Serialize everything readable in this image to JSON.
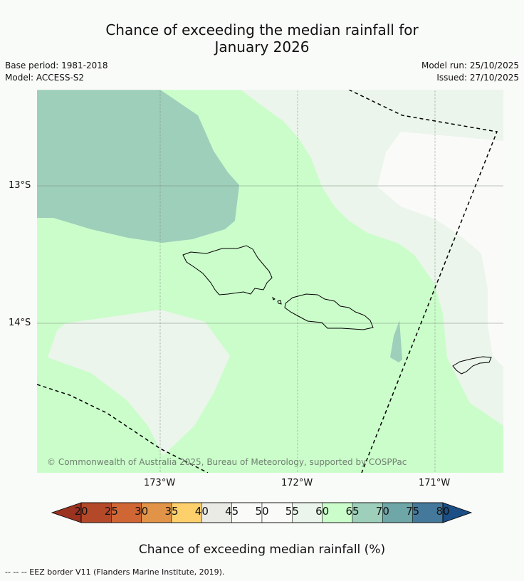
{
  "header": {
    "title_line1": "Chance of exceeding the median rainfall for",
    "title_line2": "January 2026",
    "base_period": "Base period: 1981-2018",
    "model": "Model: ACCESS-S2",
    "model_run": "Model run: 25/10/2025",
    "issued": "Issued: 27/10/2025"
  },
  "map": {
    "lat_labels": [
      "13°S",
      "14°S"
    ],
    "lon_labels": [
      "173°W",
      "172°W",
      "171°W"
    ],
    "copyright": "© Commonwealth of Australia 2025, Bureau of Meteorology, supported by COSPPac",
    "region_categories": {
      "background": "60-65",
      "northwest_patch": "65-70",
      "east_band": "55-60",
      "east_core": "50-55",
      "southwest_patch": "55-60",
      "small_east_patch": "65-70"
    }
  },
  "colorbar": {
    "ticks": [
      "20",
      "25",
      "30",
      "35",
      "40",
      "45",
      "50",
      "55",
      "60",
      "65",
      "70",
      "75",
      "80"
    ],
    "colors": [
      "#9b3320",
      "#b4492a",
      "#cf6634",
      "#e19448",
      "#fdd06c",
      "#ebebe6",
      "#fafbf9",
      "#fafbf9",
      "#ebf5eb",
      "#cbfdcb",
      "#9dcfba",
      "#6fa6a8",
      "#45799b",
      "#1b4f85"
    ],
    "label": "Chance of exceeding median rainfall (%)"
  },
  "footnote": "--  --  -- EEZ border V11 (Flanders Marine Institute, 2019)."
}
